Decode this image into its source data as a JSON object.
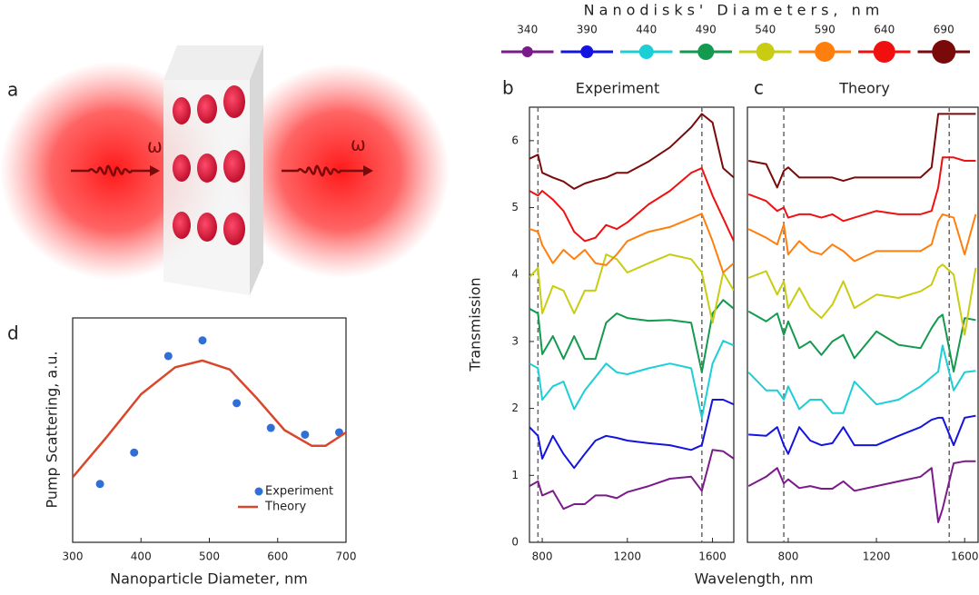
{
  "panel_a": {
    "panel": "a",
    "omega_in": "ω",
    "omega_out": "ω"
  },
  "chart_data": [
    {
      "type": "scatter",
      "panel": "d",
      "x_label": "Nanoparticle Diameter, nm",
      "y_label": "Pump Scattering, a.u.",
      "xlim": [
        300,
        700
      ],
      "xticks": [
        300,
        400,
        500,
        600,
        700
      ],
      "ylim": [
        0,
        1
      ],
      "legend": "lower right",
      "series": [
        {
          "name": "Experiment",
          "mode": "markers",
          "color": "#2f6fd6",
          "x": [
            340,
            390,
            440,
            490,
            540,
            590,
            640,
            690
          ],
          "values": [
            0.26,
            0.4,
            0.83,
            0.9,
            0.62,
            0.51,
            0.48,
            0.49
          ]
        },
        {
          "name": "Theory",
          "mode": "line",
          "color": "#d9472b",
          "x": [
            300,
            350,
            400,
            450,
            490,
            530,
            570,
            610,
            650,
            670,
            700
          ],
          "values": [
            0.29,
            0.47,
            0.66,
            0.78,
            0.81,
            0.77,
            0.64,
            0.5,
            0.43,
            0.43,
            0.49
          ]
        }
      ]
    },
    {
      "type": "line",
      "panel": "b",
      "title": "Experiment",
      "x_label": "Wavelength, nm",
      "y_label": "Transmission",
      "legend_title": "Nanodisks' Diameters, nm",
      "xlim": [
        740,
        1700
      ],
      "xticks": [
        800,
        1200,
        1600
      ],
      "ylim": [
        0,
        6.5
      ],
      "yticks": [
        0,
        1,
        2,
        3,
        4,
        5,
        6
      ],
      "vlines": [
        780,
        1550
      ],
      "x": [
        740,
        780,
        800,
        850,
        900,
        950,
        1000,
        1050,
        1100,
        1150,
        1200,
        1300,
        1400,
        1500,
        1550,
        1600,
        1650,
        1700
      ],
      "series": [
        {
          "name": "340",
          "color": "#7b1a8a",
          "values": [
            0.84,
            0.91,
            0.7,
            0.77,
            0.5,
            0.57,
            0.57,
            0.7,
            0.7,
            0.66,
            0.75,
            0.84,
            0.95,
            0.98,
            0.77,
            1.38,
            1.36,
            1.25
          ]
        },
        {
          "name": "390",
          "color": "#1414e0",
          "values": [
            1.72,
            1.59,
            1.25,
            1.59,
            1.32,
            1.11,
            1.32,
            1.52,
            1.59,
            1.56,
            1.52,
            1.48,
            1.45,
            1.38,
            1.45,
            2.13,
            2.13,
            2.06
          ]
        },
        {
          "name": "440",
          "color": "#1ccfd6",
          "values": [
            2.67,
            2.6,
            2.13,
            2.33,
            2.4,
            1.99,
            2.27,
            2.47,
            2.67,
            2.54,
            2.51,
            2.6,
            2.67,
            2.6,
            1.86,
            2.67,
            3.01,
            2.94
          ]
        },
        {
          "name": "490",
          "color": "#139a4e",
          "values": [
            3.49,
            3.42,
            2.81,
            3.08,
            2.74,
            3.08,
            2.74,
            2.74,
            3.28,
            3.42,
            3.35,
            3.31,
            3.32,
            3.28,
            2.54,
            3.42,
            3.62,
            3.49
          ]
        },
        {
          "name": "540",
          "color": "#c8cc12",
          "values": [
            3.96,
            4.1,
            3.42,
            3.83,
            3.76,
            3.42,
            3.76,
            3.76,
            4.3,
            4.23,
            4.03,
            4.17,
            4.3,
            4.23,
            4.03,
            3.28,
            4.03,
            3.76
          ]
        },
        {
          "name": "590",
          "color": "#ff7f0e",
          "values": [
            4.68,
            4.64,
            4.44,
            4.17,
            4.37,
            4.23,
            4.37,
            4.17,
            4.14,
            4.3,
            4.5,
            4.64,
            4.71,
            4.84,
            4.91,
            4.5,
            4.03,
            4.17
          ]
        },
        {
          "name": "640",
          "color": "#f01010",
          "values": [
            5.25,
            5.18,
            5.25,
            5.12,
            4.95,
            4.64,
            4.5,
            4.55,
            4.74,
            4.68,
            4.78,
            5.05,
            5.25,
            5.52,
            5.59,
            5.18,
            4.84,
            4.5
          ]
        },
        {
          "name": "690",
          "color": "#7a0a0a",
          "values": [
            5.73,
            5.79,
            5.52,
            5.45,
            5.39,
            5.28,
            5.36,
            5.41,
            5.45,
            5.52,
            5.52,
            5.69,
            5.9,
            6.2,
            6.4,
            6.27,
            5.59,
            5.45
          ]
        }
      ]
    },
    {
      "type": "line",
      "panel": "c",
      "title": "Theory",
      "xlim": [
        615,
        1665
      ],
      "xticks": [
        800,
        1200,
        1600
      ],
      "ylim": [
        0,
        6.5
      ],
      "vlines": [
        780,
        1530
      ],
      "x": [
        620,
        700,
        750,
        780,
        800,
        850,
        900,
        950,
        1000,
        1050,
        1100,
        1200,
        1300,
        1400,
        1450,
        1480,
        1500,
        1550,
        1600,
        1650
      ],
      "series": [
        {
          "color": "#7b1a8a",
          "values": [
            0.84,
            0.98,
            1.11,
            0.88,
            0.94,
            0.81,
            0.84,
            0.8,
            0.8,
            0.91,
            0.77,
            0.84,
            0.91,
            0.98,
            1.11,
            0.3,
            0.5,
            1.18,
            1.21,
            1.21
          ]
        },
        {
          "color": "#1414e0",
          "values": [
            1.61,
            1.59,
            1.72,
            1.45,
            1.32,
            1.72,
            1.52,
            1.45,
            1.48,
            1.72,
            1.45,
            1.45,
            1.59,
            1.72,
            1.83,
            1.86,
            1.86,
            1.45,
            1.86,
            1.89
          ]
        },
        {
          "color": "#1ccfd6",
          "values": [
            2.54,
            2.27,
            2.27,
            2.13,
            2.33,
            1.99,
            2.13,
            2.13,
            1.93,
            1.93,
            2.4,
            2.06,
            2.13,
            2.33,
            2.47,
            2.55,
            2.94,
            2.27,
            2.54,
            2.56
          ]
        },
        {
          "color": "#139a4e",
          "values": [
            3.45,
            3.3,
            3.42,
            3.1,
            3.3,
            2.9,
            3.0,
            2.8,
            3.0,
            3.1,
            2.75,
            3.15,
            2.95,
            2.9,
            3.2,
            3.35,
            3.4,
            2.55,
            3.35,
            3.32
          ]
        },
        {
          "color": "#c8cc12",
          "values": [
            3.95,
            4.05,
            3.7,
            3.9,
            3.5,
            3.8,
            3.5,
            3.35,
            3.55,
            3.9,
            3.5,
            3.7,
            3.65,
            3.75,
            3.85,
            4.1,
            4.15,
            4.0,
            3.1,
            4.1
          ]
        },
        {
          "color": "#ff7f0e",
          "values": [
            4.68,
            4.55,
            4.45,
            4.75,
            4.3,
            4.5,
            4.35,
            4.3,
            4.45,
            4.35,
            4.2,
            4.35,
            4.35,
            4.35,
            4.45,
            4.8,
            4.9,
            4.85,
            4.3,
            4.9
          ]
        },
        {
          "color": "#f01010",
          "values": [
            5.2,
            5.1,
            4.95,
            5.0,
            4.85,
            4.9,
            4.9,
            4.85,
            4.9,
            4.8,
            4.85,
            4.95,
            4.9,
            4.9,
            4.95,
            5.3,
            5.75,
            5.75,
            5.7,
            5.7
          ]
        },
        {
          "color": "#7a0a0a",
          "values": [
            5.7,
            5.65,
            5.3,
            5.55,
            5.6,
            5.45,
            5.45,
            5.45,
            5.45,
            5.4,
            5.45,
            5.45,
            5.45,
            5.45,
            5.6,
            6.4,
            6.4,
            6.4,
            6.4,
            6.4
          ]
        }
      ]
    }
  ]
}
